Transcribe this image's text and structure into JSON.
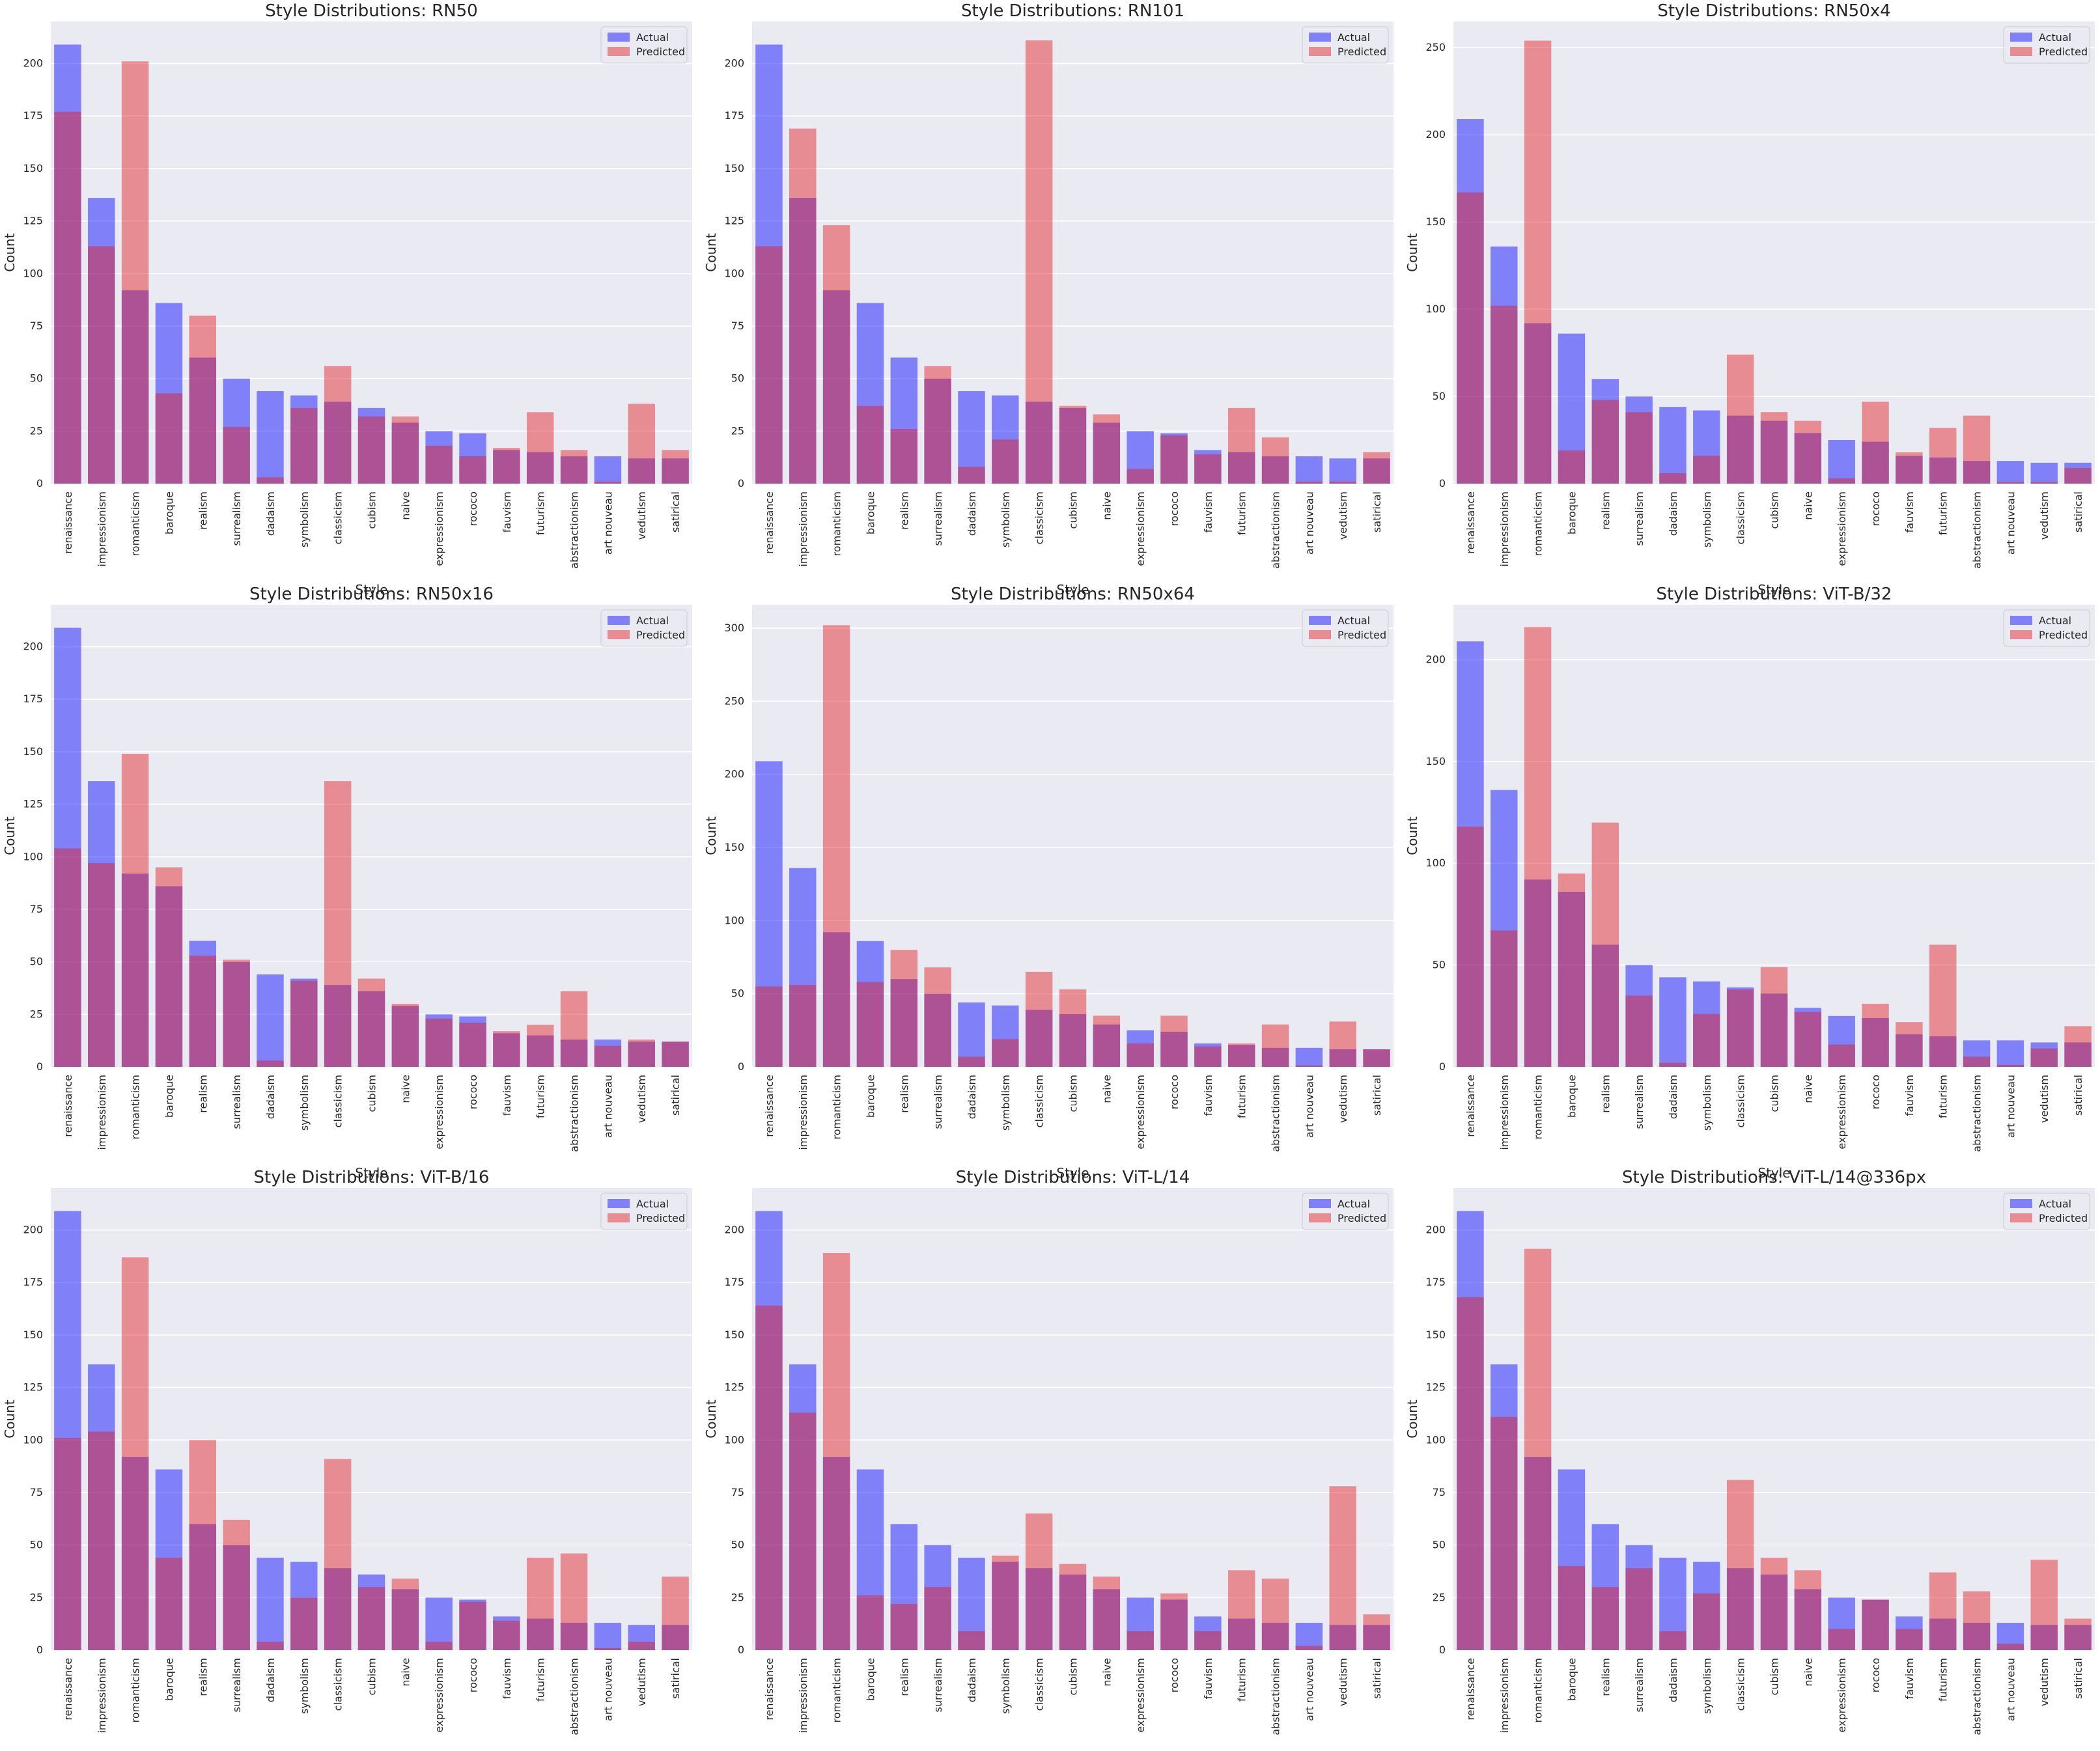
{
  "chart_data": [
    {
      "type": "bar",
      "title": "Style Distributions: RN50",
      "xlabel": "Style",
      "ylabel": "Count",
      "ylim": [
        0,
        220
      ],
      "yticks": [
        0,
        25,
        50,
        75,
        100,
        125,
        150,
        175,
        200
      ],
      "legend": "top-right",
      "grid": true,
      "categories": [
        "renaissance",
        "impressionism",
        "romanticism",
        "baroque",
        "realism",
        "surrealism",
        "dadaism",
        "symbolism",
        "classicism",
        "cubism",
        "naive",
        "expressionism",
        "rococo",
        "fauvism",
        "futurism",
        "abstractionism",
        "art nouveau",
        "vedutism",
        "satirical"
      ],
      "series": [
        {
          "name": "Actual",
          "color": "#0000ff",
          "values": [
            209,
            136,
            92,
            86,
            60,
            50,
            44,
            42,
            39,
            36,
            29,
            25,
            24,
            16,
            15,
            13,
            13,
            12,
            12
          ]
        },
        {
          "name": "Predicted",
          "color": "#e41a1c",
          "values": [
            177,
            113,
            201,
            43,
            80,
            27,
            3,
            36,
            56,
            32,
            32,
            18,
            13,
            17,
            34,
            16,
            1,
            38,
            16
          ]
        }
      ]
    },
    {
      "type": "bar",
      "title": "Style Distributions: RN101",
      "xlabel": "Style",
      "ylabel": "Count",
      "ylim": [
        0,
        220
      ],
      "yticks": [
        0,
        25,
        50,
        75,
        100,
        125,
        150,
        175,
        200
      ],
      "legend": "top-right",
      "grid": true,
      "categories": [
        "renaissance",
        "impressionism",
        "romanticism",
        "baroque",
        "realism",
        "surrealism",
        "dadaism",
        "symbolism",
        "classicism",
        "cubism",
        "naive",
        "expressionism",
        "rococo",
        "fauvism",
        "futurism",
        "abstractionism",
        "art nouveau",
        "vedutism",
        "satirical"
      ],
      "series": [
        {
          "name": "Actual",
          "color": "#0000ff",
          "values": [
            209,
            136,
            92,
            86,
            60,
            50,
            44,
            42,
            39,
            36,
            29,
            25,
            24,
            16,
            15,
            13,
            13,
            12,
            12
          ]
        },
        {
          "name": "Predicted",
          "color": "#e41a1c",
          "values": [
            113,
            169,
            123,
            37,
            26,
            56,
            8,
            21,
            211,
            37,
            33,
            7,
            23,
            14,
            36,
            22,
            1,
            1,
            15
          ]
        }
      ]
    },
    {
      "type": "bar",
      "title": "Style Distributions: RN50x4",
      "xlabel": "Style",
      "ylabel": "Count",
      "ylim": [
        0,
        265
      ],
      "yticks": [
        0,
        50,
        100,
        150,
        200,
        250
      ],
      "legend": "top-right",
      "grid": true,
      "categories": [
        "renaissance",
        "impressionism",
        "romanticism",
        "baroque",
        "realism",
        "surrealism",
        "dadaism",
        "symbolism",
        "classicism",
        "cubism",
        "naive",
        "expressionism",
        "rococo",
        "fauvism",
        "futurism",
        "abstractionism",
        "art nouveau",
        "vedutism",
        "satirical"
      ],
      "series": [
        {
          "name": "Actual",
          "color": "#0000ff",
          "values": [
            209,
            136,
            92,
            86,
            60,
            50,
            44,
            42,
            39,
            36,
            29,
            25,
            24,
            16,
            15,
            13,
            13,
            12,
            12
          ]
        },
        {
          "name": "Predicted",
          "color": "#e41a1c",
          "values": [
            167,
            102,
            254,
            19,
            48,
            41,
            6,
            16,
            74,
            41,
            36,
            3,
            47,
            18,
            32,
            39,
            1,
            1,
            9
          ]
        }
      ]
    },
    {
      "type": "bar",
      "title": "Style Distributions: RN50x16",
      "xlabel": "Style",
      "ylabel": "Count",
      "ylim": [
        0,
        220
      ],
      "yticks": [
        0,
        25,
        50,
        75,
        100,
        125,
        150,
        175,
        200
      ],
      "legend": "top-right",
      "grid": true,
      "categories": [
        "renaissance",
        "impressionism",
        "romanticism",
        "baroque",
        "realism",
        "surrealism",
        "dadaism",
        "symbolism",
        "classicism",
        "cubism",
        "naive",
        "expressionism",
        "rococo",
        "fauvism",
        "futurism",
        "abstractionism",
        "art nouveau",
        "vedutism",
        "satirical"
      ],
      "series": [
        {
          "name": "Actual",
          "color": "#0000ff",
          "values": [
            209,
            136,
            92,
            86,
            60,
            50,
            44,
            42,
            39,
            36,
            29,
            25,
            24,
            16,
            15,
            13,
            13,
            12,
            12
          ]
        },
        {
          "name": "Predicted",
          "color": "#e41a1c",
          "values": [
            104,
            97,
            149,
            95,
            53,
            51,
            3,
            41,
            136,
            42,
            30,
            23,
            21,
            17,
            20,
            36,
            10,
            13,
            12
          ]
        }
      ]
    },
    {
      "type": "bar",
      "title": "Style Distributions: RN50x64",
      "xlabel": "Style",
      "ylabel": "Count",
      "ylim": [
        0,
        316
      ],
      "yticks": [
        0,
        50,
        100,
        150,
        200,
        250,
        300
      ],
      "legend": "top-right",
      "grid": true,
      "categories": [
        "renaissance",
        "impressionism",
        "romanticism",
        "baroque",
        "realism",
        "surrealism",
        "dadaism",
        "symbolism",
        "classicism",
        "cubism",
        "naive",
        "expressionism",
        "rococo",
        "fauvism",
        "futurism",
        "abstractionism",
        "art nouveau",
        "vedutism",
        "satirical"
      ],
      "series": [
        {
          "name": "Actual",
          "color": "#0000ff",
          "values": [
            209,
            136,
            92,
            86,
            60,
            50,
            44,
            42,
            39,
            36,
            29,
            25,
            24,
            16,
            15,
            13,
            13,
            12,
            12
          ]
        },
        {
          "name": "Predicted",
          "color": "#e41a1c",
          "values": [
            55,
            56,
            302,
            58,
            80,
            68,
            7,
            19,
            65,
            53,
            35,
            16,
            35,
            14,
            16,
            29,
            1,
            31,
            12
          ]
        }
      ]
    },
    {
      "type": "bar",
      "title": "Style Distributions: ViT-B/32",
      "xlabel": "Style",
      "ylabel": "Count",
      "ylim": [
        0,
        227
      ],
      "yticks": [
        0,
        50,
        100,
        150,
        200
      ],
      "legend": "top-right",
      "grid": true,
      "categories": [
        "renaissance",
        "impressionism",
        "romanticism",
        "baroque",
        "realism",
        "surrealism",
        "dadaism",
        "symbolism",
        "classicism",
        "cubism",
        "naive",
        "expressionism",
        "rococo",
        "fauvism",
        "futurism",
        "abstractionism",
        "art nouveau",
        "vedutism",
        "satirical"
      ],
      "series": [
        {
          "name": "Actual",
          "color": "#0000ff",
          "values": [
            209,
            136,
            92,
            86,
            60,
            50,
            44,
            42,
            39,
            36,
            29,
            25,
            24,
            16,
            15,
            13,
            13,
            12,
            12
          ]
        },
        {
          "name": "Predicted",
          "color": "#e41a1c",
          "values": [
            118,
            67,
            216,
            95,
            120,
            35,
            2,
            26,
            38,
            49,
            27,
            11,
            31,
            22,
            60,
            5,
            1,
            9,
            20
          ]
        }
      ]
    },
    {
      "type": "bar",
      "title": "Style Distributions: ViT-B/16",
      "xlabel": "Style",
      "ylabel": "Count",
      "ylim": [
        0,
        220
      ],
      "yticks": [
        0,
        25,
        50,
        75,
        100,
        125,
        150,
        175,
        200
      ],
      "legend": "top-right",
      "grid": true,
      "categories": [
        "renaissance",
        "impressionism",
        "romanticism",
        "baroque",
        "realism",
        "surrealism",
        "dadaism",
        "symbolism",
        "classicism",
        "cubism",
        "naive",
        "expressionism",
        "rococo",
        "fauvism",
        "futurism",
        "abstractionism",
        "art nouveau",
        "vedutism",
        "satirical"
      ],
      "series": [
        {
          "name": "Actual",
          "color": "#0000ff",
          "values": [
            209,
            136,
            92,
            86,
            60,
            50,
            44,
            42,
            39,
            36,
            29,
            25,
            24,
            16,
            15,
            13,
            13,
            12,
            12
          ]
        },
        {
          "name": "Predicted",
          "color": "#e41a1c",
          "values": [
            101,
            104,
            187,
            44,
            100,
            62,
            4,
            25,
            91,
            30,
            34,
            4,
            23,
            14,
            44,
            46,
            1,
            4,
            35
          ]
        }
      ]
    },
    {
      "type": "bar",
      "title": "Style Distributions: ViT-L/14",
      "xlabel": "Style",
      "ylabel": "Count",
      "ylim": [
        0,
        220
      ],
      "yticks": [
        0,
        25,
        50,
        75,
        100,
        125,
        150,
        175,
        200
      ],
      "legend": "top-right",
      "grid": true,
      "categories": [
        "renaissance",
        "impressionism",
        "romanticism",
        "baroque",
        "realism",
        "surrealism",
        "dadaism",
        "symbolism",
        "classicism",
        "cubism",
        "naive",
        "expressionism",
        "rococo",
        "fauvism",
        "futurism",
        "abstractionism",
        "art nouveau",
        "vedutism",
        "satirical"
      ],
      "series": [
        {
          "name": "Actual",
          "color": "#0000ff",
          "values": [
            209,
            136,
            92,
            86,
            60,
            50,
            44,
            42,
            39,
            36,
            29,
            25,
            24,
            16,
            15,
            13,
            13,
            12,
            12
          ]
        },
        {
          "name": "Predicted",
          "color": "#e41a1c",
          "values": [
            164,
            113,
            189,
            26,
            22,
            30,
            9,
            45,
            65,
            41,
            35,
            9,
            27,
            9,
            38,
            34,
            2,
            78,
            17
          ]
        }
      ]
    },
    {
      "type": "bar",
      "title": "Style Distributions: ViT-L/14@336px",
      "xlabel": "Style",
      "ylabel": "Count",
      "ylim": [
        0,
        220
      ],
      "yticks": [
        0,
        25,
        50,
        75,
        100,
        125,
        150,
        175,
        200
      ],
      "legend": "top-right",
      "grid": true,
      "categories": [
        "renaissance",
        "impressionism",
        "romanticism",
        "baroque",
        "realism",
        "surrealism",
        "dadaism",
        "symbolism",
        "classicism",
        "cubism",
        "naive",
        "expressionism",
        "rococo",
        "fauvism",
        "futurism",
        "abstractionism",
        "art nouveau",
        "vedutism",
        "satirical"
      ],
      "series": [
        {
          "name": "Actual",
          "color": "#0000ff",
          "values": [
            209,
            136,
            92,
            86,
            60,
            50,
            44,
            42,
            39,
            36,
            29,
            25,
            24,
            16,
            15,
            13,
            13,
            12,
            12
          ]
        },
        {
          "name": "Predicted",
          "color": "#e41a1c",
          "values": [
            168,
            111,
            191,
            40,
            30,
            39,
            9,
            27,
            81,
            44,
            38,
            10,
            24,
            10,
            37,
            28,
            3,
            43,
            15
          ]
        }
      ]
    }
  ]
}
